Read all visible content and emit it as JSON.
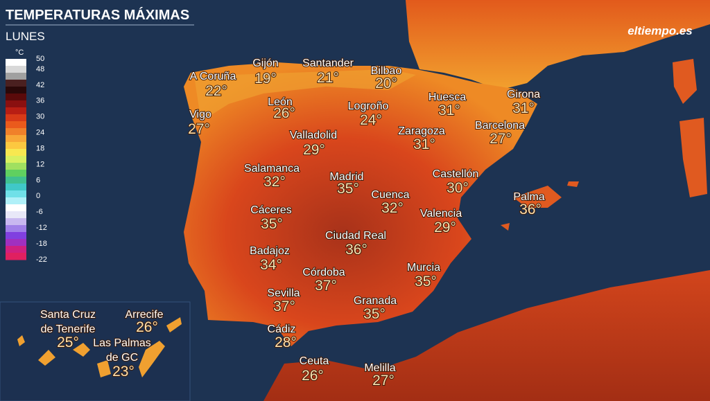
{
  "header": {
    "title": "TEMPERATURAS MÁXIMAS",
    "subtitle": "LUNES",
    "logo": "eltiempo.es"
  },
  "legend": {
    "unit": "°C",
    "labels": [
      "50",
      "48",
      "42",
      "36",
      "30",
      "24",
      "18",
      "12",
      "6",
      "0",
      "-6",
      "-12",
      "-18",
      "-22"
    ]
  },
  "cities": [
    {
      "name": "A Coruña",
      "temp": "22°"
    },
    {
      "name": "Gijón",
      "temp": "19°"
    },
    {
      "name": "Santander",
      "temp": "21°"
    },
    {
      "name": "Bilbao",
      "temp": "20°"
    },
    {
      "name": "Vigo",
      "temp": "27°"
    },
    {
      "name": "León",
      "temp": "26°"
    },
    {
      "name": "Logroño",
      "temp": "24°"
    },
    {
      "name": "Huesca",
      "temp": "31°"
    },
    {
      "name": "Girona",
      "temp": "31°"
    },
    {
      "name": "Zaragoza",
      "temp": "31°"
    },
    {
      "name": "Barcelona",
      "temp": "27°"
    },
    {
      "name": "Valladolid",
      "temp": "29°"
    },
    {
      "name": "Salamanca",
      "temp": "32°"
    },
    {
      "name": "Madrid",
      "temp": "35°"
    },
    {
      "name": "Castellón",
      "temp": "30°"
    },
    {
      "name": "Cuenca",
      "temp": "32°"
    },
    {
      "name": "Palma",
      "temp": "36°"
    },
    {
      "name": "Cáceres",
      "temp": "35°"
    },
    {
      "name": "Valencia",
      "temp": "29°"
    },
    {
      "name": "Ciudad Real",
      "temp": "36°"
    },
    {
      "name": "Badajoz",
      "temp": "34°"
    },
    {
      "name": "Murcia",
      "temp": "35°"
    },
    {
      "name": "Córdoba",
      "temp": "37°"
    },
    {
      "name": "Sevilla",
      "temp": "37°"
    },
    {
      "name": "Granada",
      "temp": "35°"
    },
    {
      "name": "Cádiz",
      "temp": "28°"
    },
    {
      "name": "Ceuta",
      "temp": "26°"
    },
    {
      "name": "Melilla",
      "temp": "27°"
    }
  ],
  "inset": {
    "cities": [
      {
        "name_lines": [
          "Santa Cruz",
          "de Tenerife"
        ],
        "temp": "25°"
      },
      {
        "name_lines": [
          "Arrecife"
        ],
        "temp": "26°"
      },
      {
        "name_lines": [
          "Las Palmas",
          "de GC"
        ],
        "temp": "23°"
      }
    ]
  }
}
